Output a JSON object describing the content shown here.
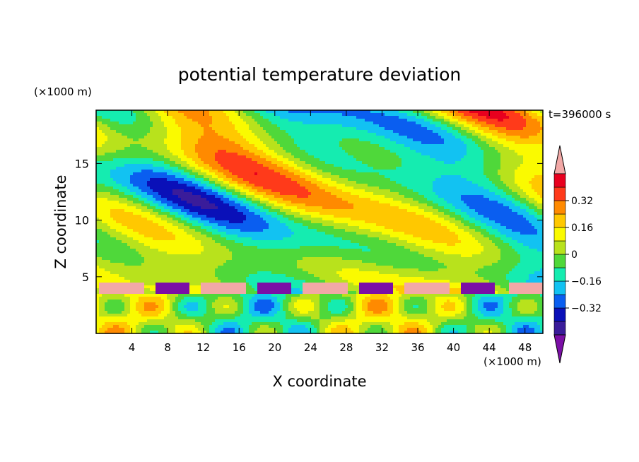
{
  "chart_data": {
    "type": "heatmap",
    "title": "potential temperature deviation",
    "time_label": "t=396000 s",
    "xlabel": "X coordinate",
    "ylabel": "Z coordinate",
    "x_unit": "(×1000 m)",
    "y_unit": "(×1000 m)",
    "xlim": [
      0,
      50
    ],
    "ylim": [
      0,
      19.7
    ],
    "x_ticks": [
      4,
      8,
      12,
      16,
      20,
      24,
      28,
      32,
      36,
      40,
      44,
      48
    ],
    "y_ticks": [
      5,
      10,
      15
    ],
    "colorbar": {
      "levels": [
        -0.48,
        -0.4,
        -0.32,
        -0.24,
        -0.16,
        -0.08,
        0,
        0.08,
        0.16,
        0.24,
        0.32,
        0.4,
        0.48
      ],
      "colors": [
        "#7b0fa6",
        "#3a1c9a",
        "#0a10b8",
        "#0a5ef0",
        "#12c2f2",
        "#15ecb0",
        "#4fd83a",
        "#b8e21c",
        "#fafa00",
        "#ffc800",
        "#ff8a00",
        "#ff3a1a",
        "#e8001e",
        "#f2a8a6"
      ],
      "labels": [
        {
          "value": 0.32,
          "text": "0.32"
        },
        {
          "value": 0.16,
          "text": "0.16"
        },
        {
          "value": 0,
          "text": "0"
        },
        {
          "value": -0.16,
          "text": "−0.16"
        },
        {
          "value": -0.32,
          "text": "−0.32"
        }
      ],
      "extend": "both"
    },
    "grid": false
  }
}
